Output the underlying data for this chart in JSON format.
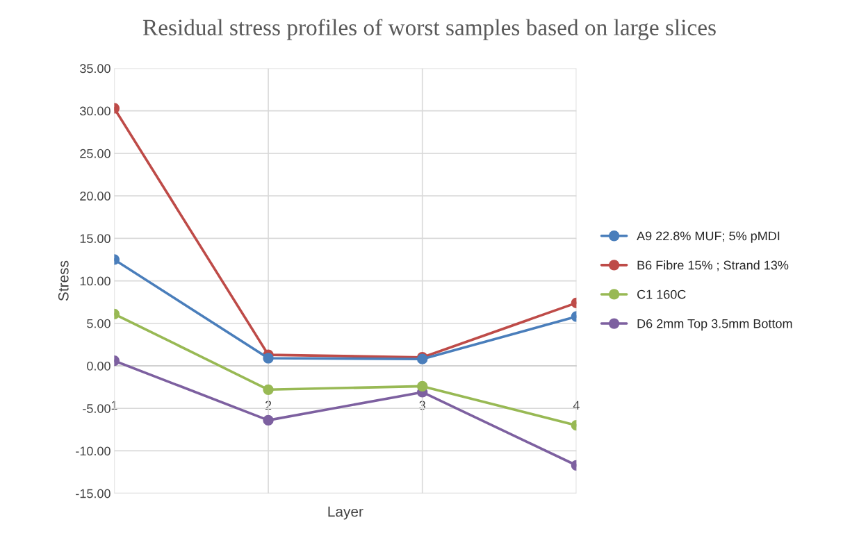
{
  "chart_data": {
    "type": "line",
    "title": "Residual stress profiles of worst samples based on large slices",
    "xlabel": "Layer",
    "ylabel": "Stress",
    "categories": [
      "1",
      "2",
      "3",
      "4"
    ],
    "series": [
      {
        "name": "A9 22.8% MUF; 5% pMDI",
        "color": "#4a7ebb",
        "values": [
          12.5,
          0.9,
          0.8,
          5.8
        ]
      },
      {
        "name": "B6 Fibre 15% ; Strand 13%",
        "color": "#be4b48",
        "values": [
          30.3,
          1.3,
          1.0,
          7.4
        ]
      },
      {
        "name": "C1 160C",
        "color": "#98b954",
        "values": [
          6.1,
          -2.8,
          -2.4,
          -7.0
        ]
      },
      {
        "name": "D6 2mm Top 3.5mm Bottom",
        "color": "#7d60a0",
        "values": [
          0.6,
          -6.4,
          -3.1,
          -11.7
        ]
      }
    ],
    "ylim": [
      -15,
      35
    ],
    "yticks": [
      {
        "value": -15,
        "label": "-15.00"
      },
      {
        "value": -10,
        "label": "-10.00"
      },
      {
        "value": -5,
        "label": "-5.00"
      },
      {
        "value": 0,
        "label": "0.00"
      },
      {
        "value": 5,
        "label": "5.00"
      },
      {
        "value": 10,
        "label": "10.00"
      },
      {
        "value": 15,
        "label": "15.00"
      },
      {
        "value": 20,
        "label": "20.00"
      },
      {
        "value": 25,
        "label": "25.00"
      },
      {
        "value": 30,
        "label": "30.00"
      },
      {
        "value": 35,
        "label": "35.00"
      }
    ],
    "grid": true,
    "legend": "right",
    "marker": "circle",
    "line_style": "solid"
  }
}
